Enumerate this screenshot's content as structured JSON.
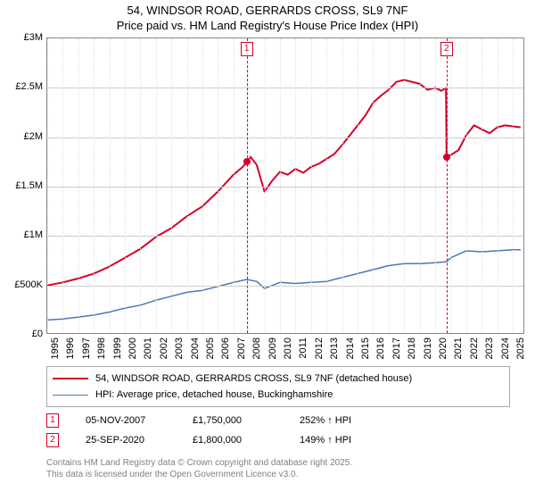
{
  "title": {
    "line1": "54, WINDSOR ROAD, GERRARDS CROSS, SL9 7NF",
    "line2": "Price paid vs. HM Land Registry's House Price Index (HPI)",
    "fontsize": 13,
    "color": "#000000"
  },
  "chart": {
    "type": "line",
    "background_color": "#ffffff",
    "plot_border_color": "#888888",
    "grid": {
      "h_color": "#cccccc",
      "v_color": "#e0e0e0",
      "v_style": "dotted"
    },
    "yaxis": {
      "min": 0,
      "max": 3000000,
      "ticks": [
        0,
        500000,
        1000000,
        1500000,
        2000000,
        2500000,
        3000000
      ],
      "tick_labels": [
        "£0",
        "£500K",
        "£1M",
        "£1.5M",
        "£2M",
        "£2.5M",
        "£3M"
      ],
      "label_fontsize": 11
    },
    "xaxis": {
      "min": 1995,
      "max": 2025.8,
      "ticks": [
        1995,
        1996,
        1997,
        1998,
        1999,
        2000,
        2001,
        2002,
        2003,
        2004,
        2005,
        2006,
        2007,
        2008,
        2009,
        2010,
        2011,
        2012,
        2013,
        2014,
        2015,
        2016,
        2017,
        2018,
        2019,
        2020,
        2021,
        2022,
        2023,
        2024,
        2025
      ],
      "tick_labels": [
        "1995",
        "1996",
        "1997",
        "1998",
        "1999",
        "2000",
        "2001",
        "2002",
        "2003",
        "2004",
        "2005",
        "2006",
        "2007",
        "2008",
        "2009",
        "2010",
        "2011",
        "2012",
        "2013",
        "2014",
        "2015",
        "2016",
        "2017",
        "2018",
        "2019",
        "2020",
        "2021",
        "2022",
        "2023",
        "2024",
        "2025"
      ],
      "label_fontsize": 11,
      "rotation": -90
    },
    "series": [
      {
        "name": "price_paid",
        "label": "54, WINDSOR ROAD, GERRARDS CROSS, SL9 7NF (detached house)",
        "color": "#d4002a",
        "line_width": 2,
        "points": [
          [
            1995,
            500000
          ],
          [
            1996,
            530000
          ],
          [
            1997,
            570000
          ],
          [
            1998,
            620000
          ],
          [
            1999,
            690000
          ],
          [
            2000,
            780000
          ],
          [
            2001,
            870000
          ],
          [
            2002,
            990000
          ],
          [
            2003,
            1080000
          ],
          [
            2004,
            1200000
          ],
          [
            2005,
            1300000
          ],
          [
            2006,
            1450000
          ],
          [
            2007,
            1620000
          ],
          [
            2007.6,
            1700000
          ],
          [
            2007.85,
            1750000
          ],
          [
            2008.1,
            1800000
          ],
          [
            2008.3,
            1760000
          ],
          [
            2008.5,
            1720000
          ],
          [
            2009,
            1450000
          ],
          [
            2009.5,
            1560000
          ],
          [
            2010,
            1650000
          ],
          [
            2010.5,
            1620000
          ],
          [
            2011,
            1680000
          ],
          [
            2011.5,
            1640000
          ],
          [
            2012,
            1700000
          ],
          [
            2012.5,
            1730000
          ],
          [
            2013,
            1780000
          ],
          [
            2013.5,
            1830000
          ],
          [
            2014,
            1920000
          ],
          [
            2014.5,
            2020000
          ],
          [
            2015,
            2120000
          ],
          [
            2015.5,
            2220000
          ],
          [
            2016,
            2350000
          ],
          [
            2016.5,
            2420000
          ],
          [
            2017,
            2480000
          ],
          [
            2017.5,
            2560000
          ],
          [
            2018,
            2580000
          ],
          [
            2018.5,
            2560000
          ],
          [
            2019,
            2540000
          ],
          [
            2019.5,
            2480000
          ],
          [
            2020,
            2500000
          ],
          [
            2020.4,
            2470000
          ],
          [
            2020.7,
            2500000
          ],
          [
            2020.73,
            1800000
          ],
          [
            2021,
            1820000
          ],
          [
            2021.5,
            1870000
          ],
          [
            2022,
            2020000
          ],
          [
            2022.5,
            2120000
          ],
          [
            2023,
            2080000
          ],
          [
            2023.5,
            2040000
          ],
          [
            2024,
            2100000
          ],
          [
            2024.5,
            2120000
          ],
          [
            2025,
            2110000
          ],
          [
            2025.5,
            2100000
          ]
        ]
      },
      {
        "name": "hpi",
        "label": "HPI: Average price, detached house, Buckinghamshire",
        "color": "#4a78b5",
        "line_width": 1.5,
        "points": [
          [
            1995,
            150000
          ],
          [
            1996,
            160000
          ],
          [
            1997,
            180000
          ],
          [
            1998,
            200000
          ],
          [
            1999,
            230000
          ],
          [
            2000,
            270000
          ],
          [
            2001,
            300000
          ],
          [
            2002,
            350000
          ],
          [
            2003,
            390000
          ],
          [
            2004,
            430000
          ],
          [
            2005,
            450000
          ],
          [
            2006,
            490000
          ],
          [
            2007,
            530000
          ],
          [
            2007.85,
            560000
          ],
          [
            2008.5,
            540000
          ],
          [
            2009,
            470000
          ],
          [
            2009.5,
            500000
          ],
          [
            2010,
            530000
          ],
          [
            2011,
            520000
          ],
          [
            2012,
            530000
          ],
          [
            2013,
            540000
          ],
          [
            2014,
            580000
          ],
          [
            2015,
            620000
          ],
          [
            2016,
            660000
          ],
          [
            2017,
            700000
          ],
          [
            2018,
            720000
          ],
          [
            2019,
            720000
          ],
          [
            2020,
            730000
          ],
          [
            2020.73,
            740000
          ],
          [
            2021,
            780000
          ],
          [
            2022,
            850000
          ],
          [
            2023,
            840000
          ],
          [
            2024,
            850000
          ],
          [
            2025,
            860000
          ],
          [
            2025.5,
            860000
          ]
        ]
      }
    ],
    "markers": [
      {
        "id": "1",
        "x": 2007.85,
        "color": "#d4002a",
        "dot_y": 1750000,
        "date": "05-NOV-2007",
        "price": "£1,750,000",
        "change": "252% ↑ HPI"
      },
      {
        "id": "2",
        "x": 2020.73,
        "color": "#d4002a",
        "dot_y": 1800000,
        "date": "25-SEP-2020",
        "price": "£1,800,000",
        "change": "149% ↑ HPI"
      }
    ]
  },
  "legend": {
    "border_color": "#aaaaaa",
    "fontsize": 11
  },
  "footer": {
    "line1": "Contains HM Land Registry data © Crown copyright and database right 2025.",
    "line2": "This data is licensed under the Open Government Licence v3.0.",
    "color": "#808080",
    "fontsize": 10
  }
}
